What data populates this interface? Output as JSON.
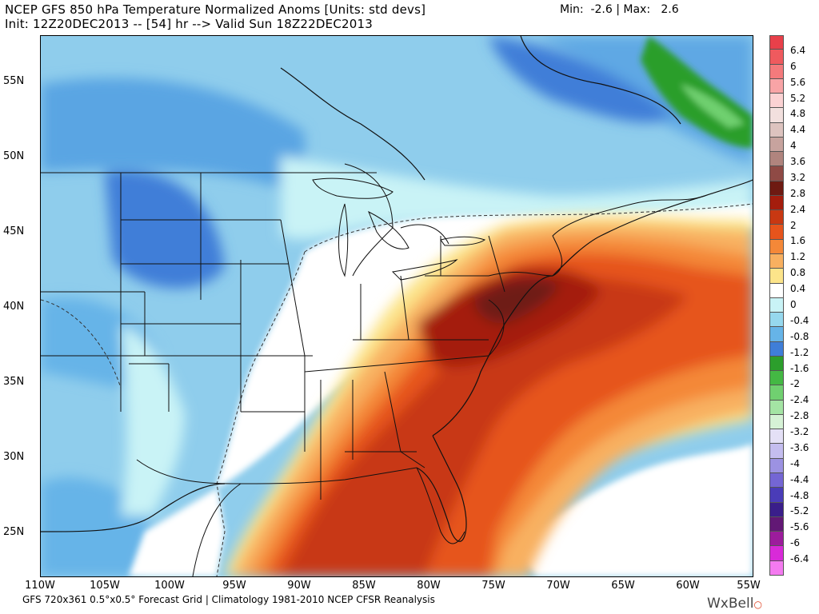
{
  "header": {
    "title": "NCEP GFS 850 hPa Temperature Normalized Anoms [Units: std devs]",
    "subtitle": "Init: 12Z20DEC2013 -- [54] hr --> Valid Sun 18Z22DEC2013",
    "minmax": "Min:  -2.6 | Max:   2.6"
  },
  "axes": {
    "lat_labels": [
      "55N",
      "50N",
      "45N",
      "40N",
      "35N",
      "30N",
      "25N"
    ],
    "lon_labels": [
      "110W",
      "105W",
      "100W",
      "95W",
      "90W",
      "85W",
      "80W",
      "75W",
      "70W",
      "65W",
      "60W",
      "55W"
    ]
  },
  "colorbar": {
    "labels": [
      "6.4",
      "6",
      "5.6",
      "5.2",
      "4.8",
      "4.4",
      "4",
      "3.6",
      "3.2",
      "2.8",
      "2.4",
      "2",
      "1.6",
      "1.2",
      "0.8",
      "0.4",
      "0",
      "-0.4",
      "-0.8",
      "-1.2",
      "-1.6",
      "-2",
      "-2.4",
      "-2.8",
      "-3.2",
      "-3.6",
      "-4",
      "-4.4",
      "-4.8",
      "-5.2",
      "-5.6",
      "-6",
      "-6.4"
    ],
    "colors": [
      "#e8404a",
      "#ef5a5e",
      "#f47a7c",
      "#f8a4a6",
      "#fbd2d3",
      "#f2e0de",
      "#ddc3bf",
      "#c7a39e",
      "#b0847e",
      "#8f4a45",
      "#6e1a12",
      "#a41d0d",
      "#c83812",
      "#e6541c",
      "#f48838",
      "#f8b060",
      "#fce48a",
      "#ffffff",
      "#c9f3f6",
      "#96d8ee",
      "#66b4e8",
      "#3f7ed8",
      "#2c9e2c",
      "#44b844",
      "#70d070",
      "#a4e4a4",
      "#d6f2d6",
      "#e4e0f6",
      "#c4bdef",
      "#9c92e2",
      "#7466d4",
      "#4a3cb8",
      "#3a1e8a",
      "#621875",
      "#9c1c9c",
      "#d82ad8",
      "#f47af0"
    ]
  },
  "footer": {
    "text": "GFS 720x361 0.5°x0.5° Forecast Grid | Climatology 1981-2010 NCEP CFSR Reanalysis",
    "brand": "WxBell"
  }
}
